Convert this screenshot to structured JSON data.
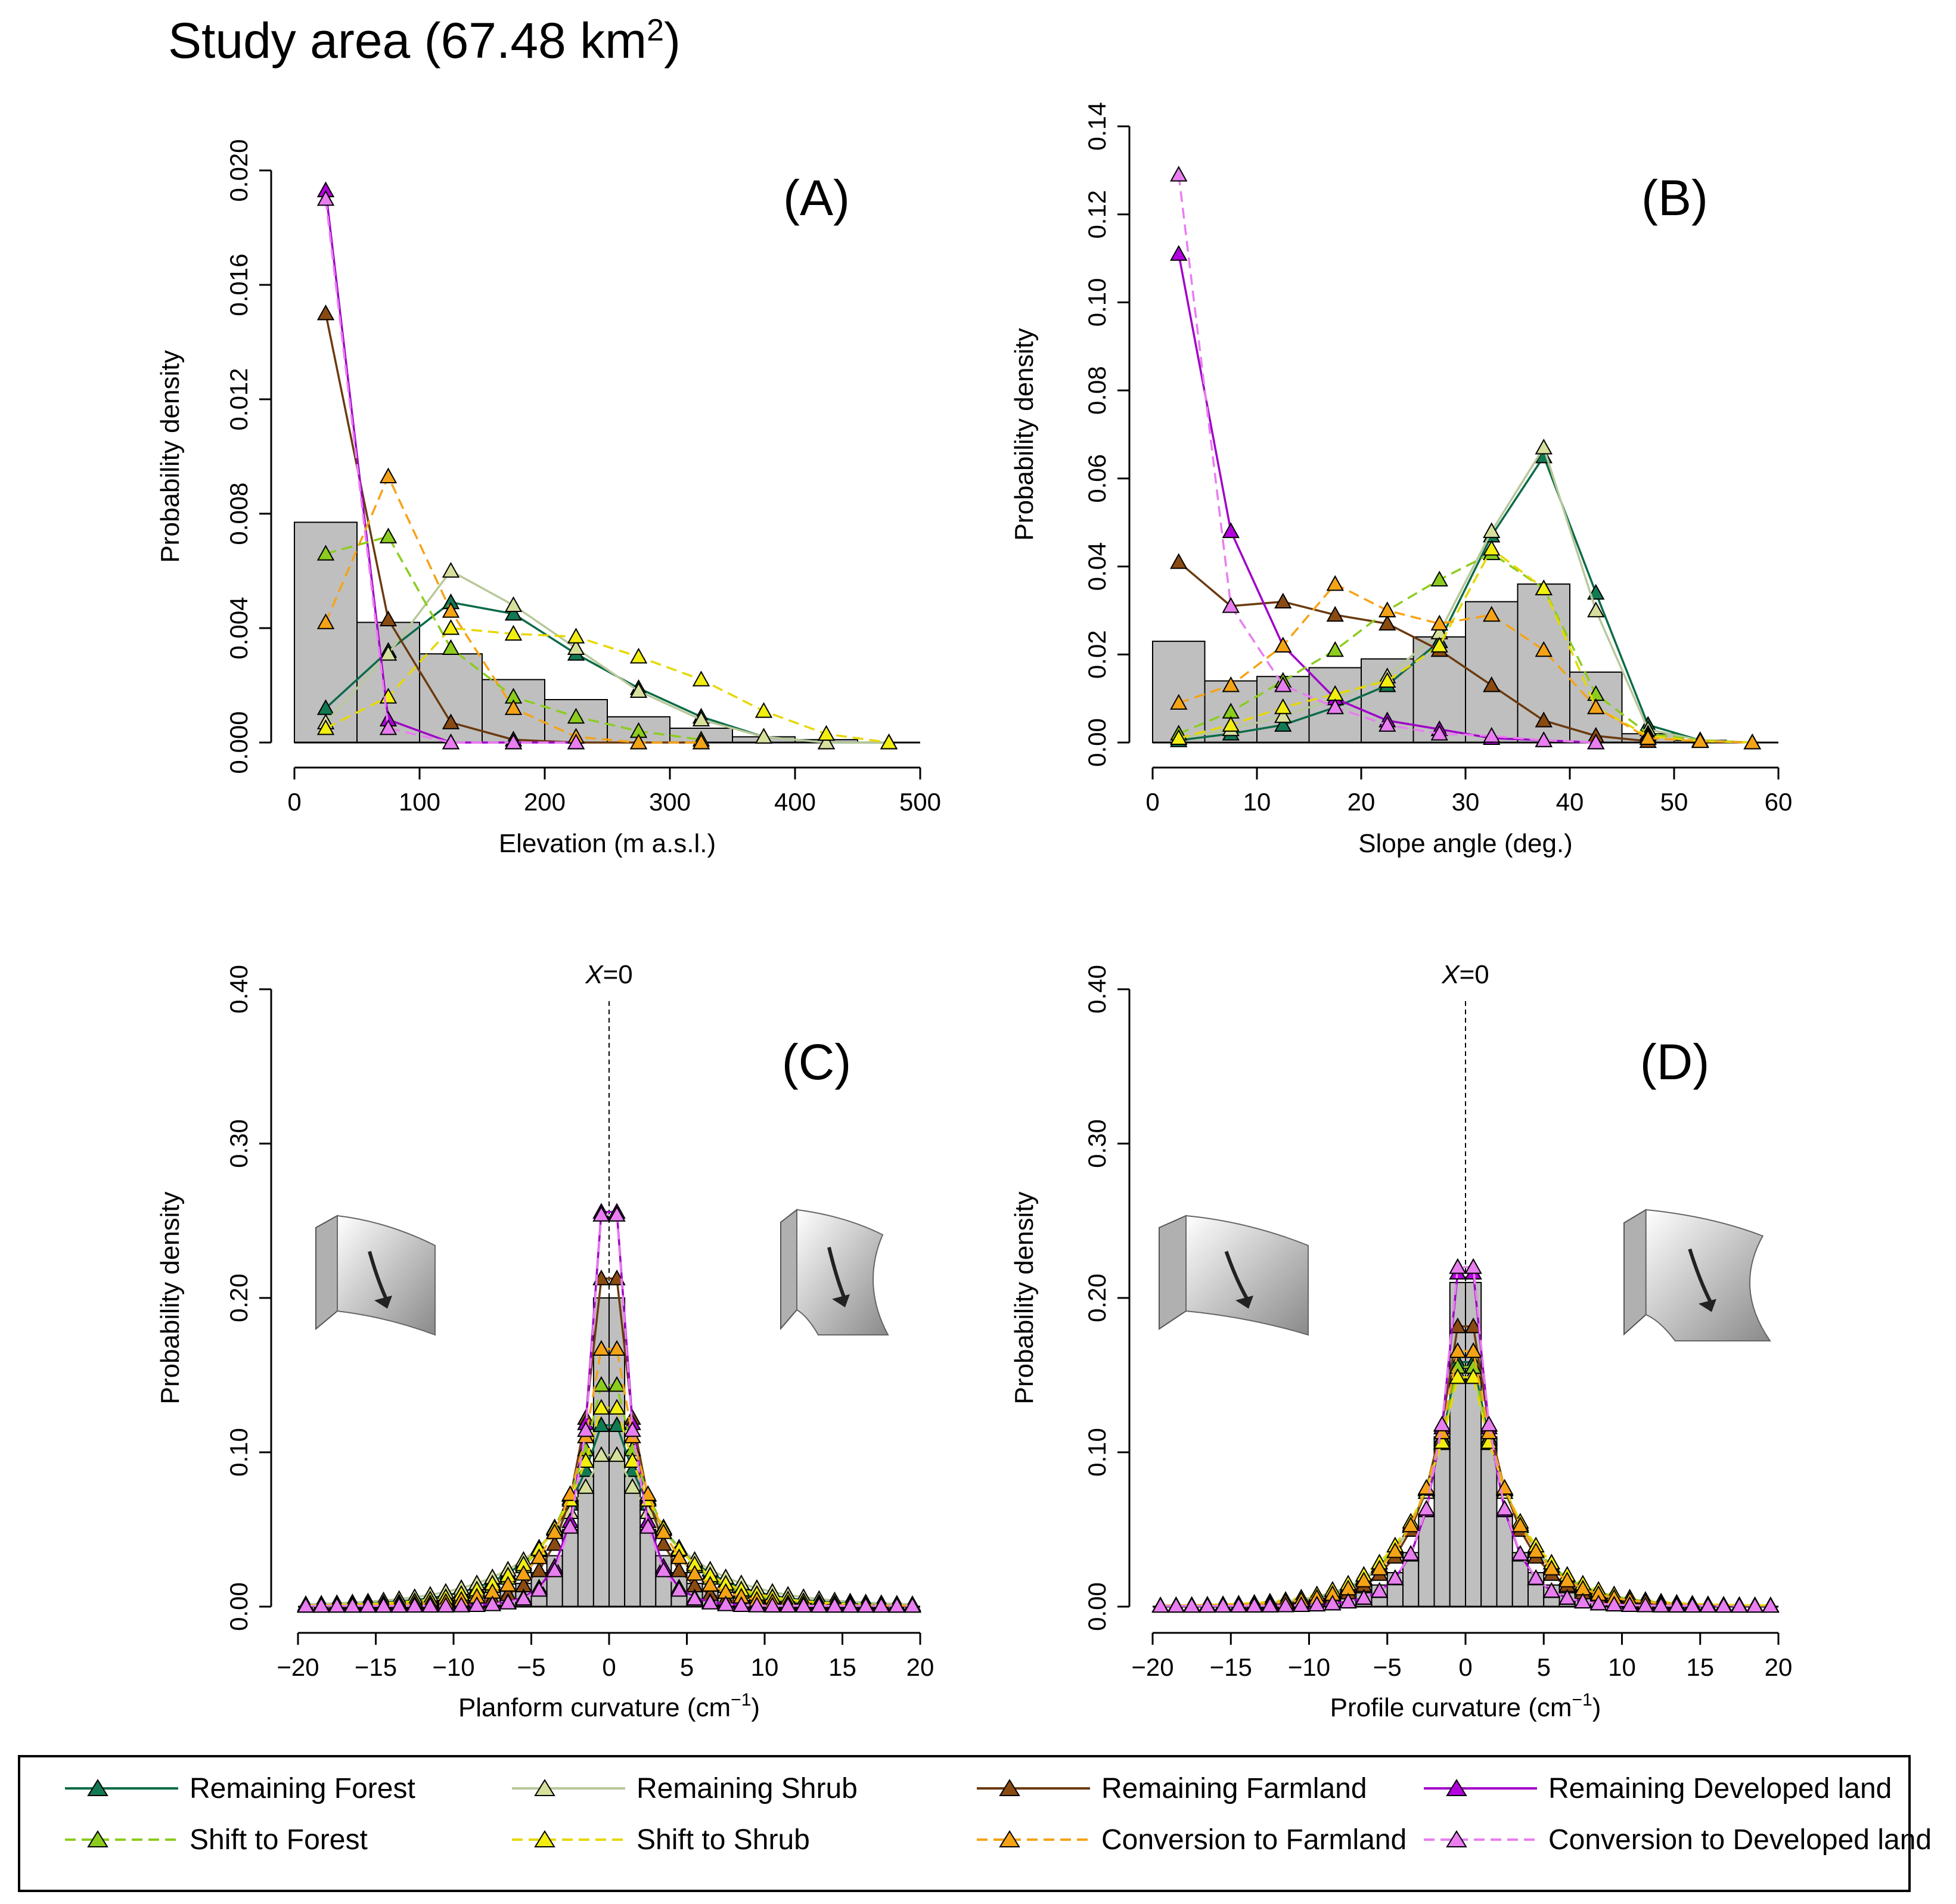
{
  "title": {
    "main": "Study area (67.48 km",
    "sup": "2",
    "close": ")"
  },
  "series_styles": [
    {
      "name": "Remaining Forest",
      "color": "#0b6b47",
      "fill": "#127a52",
      "dash": ""
    },
    {
      "name": "Remaining Shrub",
      "color": "#b8c89a",
      "fill": "#d7df9c",
      "dash": ""
    },
    {
      "name": "Remaining Farmland",
      "color": "#6b3a0f",
      "fill": "#8a4b12",
      "dash": ""
    },
    {
      "name": "Remaining Developed land",
      "color": "#a000c8",
      "fill": "#b400e0",
      "dash": ""
    },
    {
      "name": "Shift to Forest",
      "color": "#8ccc1e",
      "fill": "#8ccc1e",
      "dash": "18,10"
    },
    {
      "name": "Shift to Shrub",
      "color": "#e6d800",
      "fill": "#f2ee10",
      "dash": "18,10"
    },
    {
      "name": "Conversion to Farmland",
      "color": "#f5a316",
      "fill": "#f5a316",
      "dash": "18,10"
    },
    {
      "name": "Conversion to Developed land",
      "color": "#e87ef0",
      "fill": "#e87ef0",
      "dash": "18,10"
    }
  ],
  "legend": {
    "items": [
      "Remaining Forest",
      "Remaining Shrub",
      "Remaining Farmland",
      "Remaining Developed land",
      "Shift to Forest",
      "Shift to Shrub",
      "Conversion to Farmland",
      "Conversion to Developed land"
    ]
  },
  "chart_data": [
    {
      "id": "A",
      "type": "bar+line",
      "panel_label": "(A)",
      "xlabel": "Elevation (m a.s.l.)",
      "ylabel": "Probability density",
      "xlim": [
        0,
        500
      ],
      "ylim": [
        0,
        0.02
      ],
      "xticks": [
        0,
        100,
        200,
        300,
        400,
        500
      ],
      "xtick_labels": [
        "0",
        "100",
        "200",
        "300",
        "400",
        "500"
      ],
      "yticks": [
        0,
        0.004,
        0.008,
        0.012,
        0.016,
        0.02
      ],
      "ytick_labels": [
        "0.000",
        "0.004",
        "0.008",
        "0.012",
        "0.016",
        "0.020"
      ],
      "histogram": {
        "bin_edges": [
          0,
          50,
          100,
          150,
          200,
          250,
          300,
          350,
          400,
          450,
          500
        ],
        "values": [
          0.0077,
          0.0042,
          0.0031,
          0.0022,
          0.0015,
          0.0009,
          0.0005,
          0.0002,
          0.0001,
          0.0
        ]
      },
      "series": [
        {
          "name": "Remaining Forest",
          "x": [
            25,
            75,
            125,
            175,
            225,
            275,
            325,
            375,
            425,
            475
          ],
          "y": [
            0.0012,
            0.0032,
            0.0049,
            0.0045,
            0.0031,
            0.0019,
            0.0009,
            0.0002,
            0.0,
            0.0
          ]
        },
        {
          "name": "Remaining Shrub",
          "x": [
            25,
            75,
            125,
            175,
            225,
            275,
            325,
            375,
            425,
            475
          ],
          "y": [
            0.0007,
            0.0031,
            0.006,
            0.0048,
            0.0033,
            0.0018,
            0.0008,
            0.0002,
            0.0,
            0.0
          ]
        },
        {
          "name": "Remaining Farmland",
          "x": [
            25,
            75,
            125,
            175,
            225,
            275,
            325
          ],
          "y": [
            0.015,
            0.0043,
            0.0007,
            0.0001,
            0.0,
            0.0,
            0.0
          ]
        },
        {
          "name": "Remaining Developed land",
          "x": [
            25,
            75,
            125,
            175,
            225
          ],
          "y": [
            0.0193,
            0.0008,
            0.0,
            0.0,
            0.0
          ]
        },
        {
          "name": "Shift to Forest",
          "x": [
            25,
            75,
            125,
            175,
            225,
            275,
            325
          ],
          "y": [
            0.0066,
            0.0072,
            0.0033,
            0.0016,
            0.0009,
            0.0004,
            0.0001
          ]
        },
        {
          "name": "Shift to Shrub",
          "x": [
            25,
            75,
            125,
            175,
            225,
            275,
            325,
            375,
            425,
            475
          ],
          "y": [
            0.0005,
            0.0016,
            0.004,
            0.0038,
            0.0037,
            0.003,
            0.0022,
            0.0011,
            0.0003,
            0.0
          ]
        },
        {
          "name": "Conversion to Farmland",
          "x": [
            25,
            75,
            125,
            175,
            225,
            275,
            325
          ],
          "y": [
            0.0042,
            0.0093,
            0.0046,
            0.0012,
            0.0002,
            0.0,
            0.0
          ]
        },
        {
          "name": "Conversion to Developed land",
          "x": [
            25,
            75,
            125,
            175,
            225
          ],
          "y": [
            0.019,
            0.0005,
            0.0,
            0.0,
            0.0
          ]
        }
      ]
    },
    {
      "id": "B",
      "type": "bar+line",
      "panel_label": "(B)",
      "xlabel": "Slope angle (deg.)",
      "ylabel": "Probability density",
      "xlim": [
        0,
        60
      ],
      "ylim": [
        0,
        0.14
      ],
      "xticks": [
        0,
        10,
        20,
        30,
        40,
        50,
        60
      ],
      "xtick_labels": [
        "0",
        "10",
        "20",
        "30",
        "40",
        "50",
        "60"
      ],
      "yticks": [
        0,
        0.02,
        0.04,
        0.06,
        0.08,
        0.1,
        0.12,
        0.14
      ],
      "ytick_labels": [
        "0.00",
        "0.02",
        "0.04",
        "0.06",
        "0.08",
        "0.10",
        "0.12",
        "0.14"
      ],
      "histogram": {
        "bin_edges": [
          0,
          5,
          10,
          15,
          20,
          25,
          30,
          35,
          40,
          45,
          50,
          55,
          60
        ],
        "values": [
          0.023,
          0.014,
          0.015,
          0.017,
          0.019,
          0.024,
          0.032,
          0.036,
          0.016,
          0.002,
          0.0005,
          0.0
        ]
      },
      "series": [
        {
          "name": "Remaining Forest",
          "x": [
            2.5,
            7.5,
            12.5,
            17.5,
            22.5,
            27.5,
            32.5,
            37.5,
            42.5,
            47.5,
            52.5,
            57.5
          ],
          "y": [
            0.0005,
            0.002,
            0.004,
            0.008,
            0.013,
            0.023,
            0.047,
            0.065,
            0.034,
            0.004,
            0.0005,
            0.0
          ]
        },
        {
          "name": "Remaining Shrub",
          "x": [
            2.5,
            7.5,
            12.5,
            17.5,
            22.5,
            27.5,
            32.5,
            37.5,
            42.5,
            47.5,
            52.5,
            57.5
          ],
          "y": [
            0.001,
            0.003,
            0.006,
            0.01,
            0.015,
            0.025,
            0.048,
            0.067,
            0.03,
            0.003,
            0.0005,
            0.0
          ]
        },
        {
          "name": "Remaining Farmland",
          "x": [
            2.5,
            7.5,
            12.5,
            17.5,
            22.5,
            27.5,
            32.5,
            37.5,
            42.5,
            47.5
          ],
          "y": [
            0.041,
            0.031,
            0.032,
            0.029,
            0.027,
            0.021,
            0.013,
            0.005,
            0.0015,
            0.0003
          ]
        },
        {
          "name": "Remaining Developed land",
          "x": [
            2.5,
            7.5,
            12.5,
            17.5,
            22.5,
            27.5,
            32.5,
            37.5,
            42.5
          ],
          "y": [
            0.111,
            0.048,
            0.022,
            0.01,
            0.005,
            0.003,
            0.001,
            0.0005,
            0.0
          ]
        },
        {
          "name": "Shift to Forest",
          "x": [
            2.5,
            7.5,
            12.5,
            17.5,
            22.5,
            27.5,
            32.5,
            37.5,
            42.5,
            47.5,
            52.5,
            57.5
          ],
          "y": [
            0.002,
            0.007,
            0.014,
            0.021,
            0.03,
            0.037,
            0.043,
            0.035,
            0.011,
            0.002,
            0.0005,
            0.0
          ]
        },
        {
          "name": "Shift to Shrub",
          "x": [
            2.5,
            7.5,
            12.5,
            17.5,
            22.5,
            27.5,
            32.5,
            37.5,
            42.5,
            47.5,
            52.5,
            57.5
          ],
          "y": [
            0.001,
            0.004,
            0.008,
            0.011,
            0.014,
            0.022,
            0.044,
            0.035,
            0.008,
            0.0015,
            0.0003,
            0.0
          ]
        },
        {
          "name": "Conversion to Farmland",
          "x": [
            2.5,
            7.5,
            12.5,
            17.5,
            22.5,
            27.5,
            32.5,
            37.5,
            42.5,
            47.5,
            52.5,
            57.5
          ],
          "y": [
            0.009,
            0.013,
            0.022,
            0.036,
            0.03,
            0.027,
            0.029,
            0.021,
            0.008,
            0.001,
            0.0003,
            0.0
          ]
        },
        {
          "name": "Conversion to Developed land",
          "x": [
            2.5,
            7.5,
            12.5,
            17.5,
            22.5,
            27.5,
            32.5,
            37.5,
            42.5
          ],
          "y": [
            0.129,
            0.031,
            0.013,
            0.008,
            0.004,
            0.002,
            0.0015,
            0.0005,
            0.0
          ]
        }
      ]
    },
    {
      "id": "C",
      "type": "bar+line",
      "panel_label": "(C)",
      "xlabel": "Planform curvature (cm",
      "xlabel_sup": "−1",
      "xlabel_close": ")",
      "ylabel": "Probability density",
      "xlim": [
        -20,
        20
      ],
      "ylim": [
        0,
        0.4
      ],
      "xticks": [
        -20,
        -15,
        -10,
        -5,
        0,
        5,
        10,
        15,
        20
      ],
      "xtick_labels": [
        "−20",
        "−15",
        "−10",
        "−5",
        "0",
        "5",
        "10",
        "15",
        "20"
      ],
      "yticks": [
        0,
        0.1,
        0.2,
        0.3,
        0.4
      ],
      "ytick_labels": [
        "0.00",
        "0.10",
        "0.20",
        "0.30",
        "0.40"
      ],
      "annotation": {
        "ref_x": 0,
        "text_var": "X",
        "text_rest": "=0"
      },
      "histogram": {
        "bin_width": 1,
        "centers": [
          -9.5,
          -8.5,
          -7.5,
          -6.5,
          -5.5,
          -4.5,
          -3.5,
          -2.5,
          -1.5,
          -0.5,
          0.5,
          1.5,
          2.5,
          3.5,
          4.5,
          5.5,
          6.5,
          7.5,
          8.5,
          9.5
        ],
        "values": [
          0.002,
          0.004,
          0.006,
          0.01,
          0.015,
          0.022,
          0.033,
          0.05,
          0.085,
          0.2,
          0.2,
          0.085,
          0.05,
          0.033,
          0.022,
          0.015,
          0.01,
          0.006,
          0.004,
          0.002
        ]
      },
      "series": [
        {
          "name": "Remaining Forest",
          "shape": "laplace",
          "peak": 0.135,
          "scale": 3.5
        },
        {
          "name": "Remaining Shrub",
          "shape": "laplace",
          "peak": 0.11,
          "scale": 4.2
        },
        {
          "name": "Remaining Farmland",
          "shape": "laplace",
          "peak": 0.28,
          "scale": 1.8
        },
        {
          "name": "Remaining Developed land",
          "shape": "laplace",
          "peak": 0.375,
          "scale": 1.3
        },
        {
          "name": "Shift to Forest",
          "shape": "laplace",
          "peak": 0.17,
          "scale": 2.9
        },
        {
          "name": "Shift to Shrub",
          "shape": "laplace",
          "peak": 0.15,
          "scale": 3.2
        },
        {
          "name": "Conversion to Farmland",
          "shape": "laplace",
          "peak": 0.205,
          "scale": 2.4
        },
        {
          "name": "Conversion to Developed land",
          "shape": "laplace",
          "peak": 0.378,
          "scale": 1.25
        }
      ]
    },
    {
      "id": "D",
      "type": "bar+line",
      "panel_label": "(D)",
      "xlabel": "Profile curvature (cm",
      "xlabel_sup": "−1",
      "xlabel_close": ")",
      "ylabel": "Probability density",
      "xlim": [
        -20,
        20
      ],
      "ylim": [
        0,
        0.4
      ],
      "xticks": [
        -20,
        -15,
        -10,
        -5,
        0,
        5,
        10,
        15,
        20
      ],
      "xtick_labels": [
        "−20",
        "−15",
        "−10",
        "−5",
        "0",
        "5",
        "10",
        "15",
        "20"
      ],
      "yticks": [
        0,
        0.1,
        0.2,
        0.3,
        0.4
      ],
      "ytick_labels": [
        "0.00",
        "0.10",
        "0.20",
        "0.30",
        "0.40"
      ],
      "annotation": {
        "ref_x": 0,
        "text_var": "X",
        "text_rest": "=0"
      },
      "histogram": {
        "bin_width": 1,
        "centers": [
          -9.5,
          -8.5,
          -7.5,
          -6.5,
          -5.5,
          -4.5,
          -3.5,
          -2.5,
          -1.5,
          -0.5,
          0.5,
          1.5,
          2.5,
          3.5,
          4.5,
          5.5,
          6.5,
          7.5,
          8.5,
          9.5
        ],
        "values": [
          0.002,
          0.004,
          0.006,
          0.009,
          0.014,
          0.022,
          0.035,
          0.06,
          0.11,
          0.21,
          0.21,
          0.11,
          0.06,
          0.035,
          0.022,
          0.014,
          0.009,
          0.006,
          0.004,
          0.002
        ]
      },
      "series": [
        {
          "name": "Remaining Forest",
          "shape": "laplace",
          "peak": 0.19,
          "scale": 2.7
        },
        {
          "name": "Remaining Shrub",
          "shape": "laplace",
          "peak": 0.18,
          "scale": 2.8
        },
        {
          "name": "Remaining Farmland",
          "shape": "laplace",
          "peak": 0.225,
          "scale": 2.3
        },
        {
          "name": "Remaining Developed land",
          "shape": "laplace",
          "peak": 0.295,
          "scale": 1.6
        },
        {
          "name": "Shift to Forest",
          "shape": "laplace",
          "peak": 0.185,
          "scale": 2.8
        },
        {
          "name": "Shift to Shrub",
          "shape": "laplace",
          "peak": 0.175,
          "scale": 3.0
        },
        {
          "name": "Conversion to Farmland",
          "shape": "laplace",
          "peak": 0.2,
          "scale": 2.6
        },
        {
          "name": "Conversion to Developed land",
          "shape": "laplace",
          "peak": 0.3,
          "scale": 1.6
        }
      ]
    }
  ]
}
